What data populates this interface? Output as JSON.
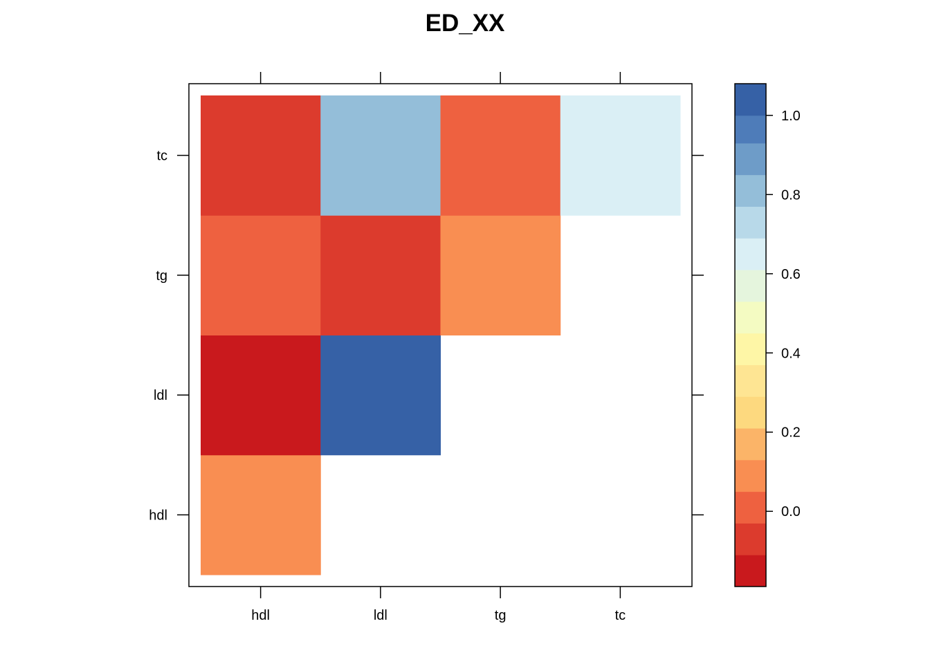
{
  "chart_data": {
    "type": "heatmap",
    "title": "ED_XX",
    "xlabel": "",
    "ylabel": "",
    "x_categories": [
      "hdl",
      "ldl",
      "tg",
      "tc"
    ],
    "y_categories": [
      "hdl",
      "ldl",
      "tg",
      "tc"
    ],
    "cells": [
      {
        "x": "hdl",
        "y": "hdl",
        "value": 0.1
      },
      {
        "x": "hdl",
        "y": "ldl",
        "value": -0.15
      },
      {
        "x": "ldl",
        "y": "ldl",
        "value": 1.0
      },
      {
        "x": "hdl",
        "y": "tg",
        "value": 0.02
      },
      {
        "x": "ldl",
        "y": "tg",
        "value": -0.07
      },
      {
        "x": "tg",
        "y": "tg",
        "value": 0.1
      },
      {
        "x": "hdl",
        "y": "tc",
        "value": -0.07
      },
      {
        "x": "ldl",
        "y": "tc",
        "value": 0.82
      },
      {
        "x": "tg",
        "y": "tc",
        "value": 0.02
      },
      {
        "x": "tc",
        "y": "tc",
        "value": 0.65
      }
    ],
    "colorbar": {
      "range": [
        -0.19,
        1.08
      ],
      "ticks": [
        0.0,
        0.2,
        0.4,
        0.6,
        0.8,
        1.0
      ],
      "tick_labels": [
        "0.0",
        "0.2",
        "0.4",
        "0.6",
        "0.8",
        "1.0"
      ],
      "bands": [
        {
          "from": -0.19,
          "to": -0.11,
          "color": "#C9191D"
        },
        {
          "from": -0.11,
          "to": -0.03,
          "color": "#DC3B2D"
        },
        {
          "from": -0.03,
          "to": 0.05,
          "color": "#EE6140"
        },
        {
          "from": 0.05,
          "to": 0.13,
          "color": "#F98E52"
        },
        {
          "from": 0.13,
          "to": 0.21,
          "color": "#FBB468"
        },
        {
          "from": 0.21,
          "to": 0.29,
          "color": "#FDD97F"
        },
        {
          "from": 0.29,
          "to": 0.37,
          "color": "#FEE593"
        },
        {
          "from": 0.37,
          "to": 0.45,
          "color": "#FEF6A6"
        },
        {
          "from": 0.45,
          "to": 0.53,
          "color": "#F4FBC2"
        },
        {
          "from": 0.53,
          "to": 0.61,
          "color": "#E5F5DD"
        },
        {
          "from": 0.61,
          "to": 0.69,
          "color": "#DAEFF5"
        },
        {
          "from": 0.69,
          "to": 0.77,
          "color": "#B8D9E9"
        },
        {
          "from": 0.77,
          "to": 0.85,
          "color": "#94BED9"
        },
        {
          "from": 0.85,
          "to": 0.93,
          "color": "#6E9CC8"
        },
        {
          "from": 0.93,
          "to": 1.0,
          "color": "#4E7CB9"
        },
        {
          "from": 1.0,
          "to": 1.08,
          "color": "#3661A6"
        }
      ]
    }
  }
}
